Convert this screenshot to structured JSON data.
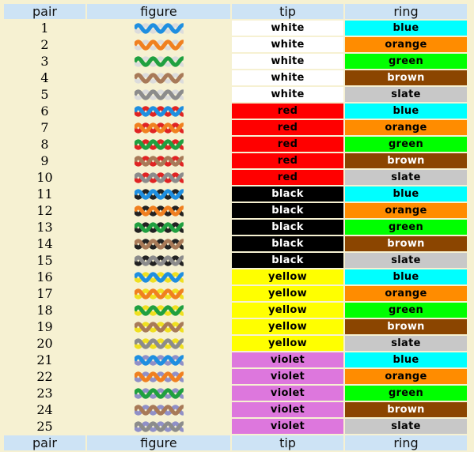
{
  "columns": {
    "pair": "pair",
    "figure": "figure",
    "tip": "tip",
    "ring": "ring"
  },
  "colors": {
    "white": {
      "bg": "#ffffff",
      "text": "#000000",
      "wire": "#dcdcdc"
    },
    "red": {
      "bg": "#ff0000",
      "text": "#000000",
      "wire": "#e02424"
    },
    "black": {
      "bg": "#000000",
      "text": "#ffffff",
      "wire": "#222222"
    },
    "yellow": {
      "bg": "#ffff00",
      "text": "#000000",
      "wire": "#f0e020"
    },
    "violet": {
      "bg": "#dd77dd",
      "text": "#000000",
      "wire": "#9090c8"
    },
    "blue": {
      "bg": "#00ffff",
      "text": "#000000",
      "wire": "#1f8fe0"
    },
    "orange": {
      "bg": "#ff8c00",
      "text": "#000000",
      "wire": "#f08020"
    },
    "green": {
      "bg": "#00ff00",
      "text": "#000000",
      "wire": "#20a040"
    },
    "brown": {
      "bg": "#8b4500",
      "text": "#ffffff",
      "wire": "#a87a58"
    },
    "slate": {
      "bg": "#c8c8c8",
      "text": "#000000",
      "wire": "#8c8c8c"
    }
  },
  "rows": [
    {
      "pair": "1",
      "tip": "white",
      "ring": "blue"
    },
    {
      "pair": "2",
      "tip": "white",
      "ring": "orange"
    },
    {
      "pair": "3",
      "tip": "white",
      "ring": "green"
    },
    {
      "pair": "4",
      "tip": "white",
      "ring": "brown"
    },
    {
      "pair": "5",
      "tip": "white",
      "ring": "slate"
    },
    {
      "pair": "6",
      "tip": "red",
      "ring": "blue"
    },
    {
      "pair": "7",
      "tip": "red",
      "ring": "orange"
    },
    {
      "pair": "8",
      "tip": "red",
      "ring": "green"
    },
    {
      "pair": "9",
      "tip": "red",
      "ring": "brown"
    },
    {
      "pair": "10",
      "tip": "red",
      "ring": "slate"
    },
    {
      "pair": "11",
      "tip": "black",
      "ring": "blue"
    },
    {
      "pair": "12",
      "tip": "black",
      "ring": "orange"
    },
    {
      "pair": "13",
      "tip": "black",
      "ring": "green"
    },
    {
      "pair": "14",
      "tip": "black",
      "ring": "brown"
    },
    {
      "pair": "15",
      "tip": "black",
      "ring": "slate"
    },
    {
      "pair": "16",
      "tip": "yellow",
      "ring": "blue"
    },
    {
      "pair": "17",
      "tip": "yellow",
      "ring": "orange"
    },
    {
      "pair": "18",
      "tip": "yellow",
      "ring": "green"
    },
    {
      "pair": "19",
      "tip": "yellow",
      "ring": "brown"
    },
    {
      "pair": "20",
      "tip": "yellow",
      "ring": "slate"
    },
    {
      "pair": "21",
      "tip": "violet",
      "ring": "blue"
    },
    {
      "pair": "22",
      "tip": "violet",
      "ring": "orange"
    },
    {
      "pair": "23",
      "tip": "violet",
      "ring": "green"
    },
    {
      "pair": "24",
      "tip": "violet",
      "ring": "brown"
    },
    {
      "pair": "25",
      "tip": "violet",
      "ring": "slate"
    }
  ]
}
